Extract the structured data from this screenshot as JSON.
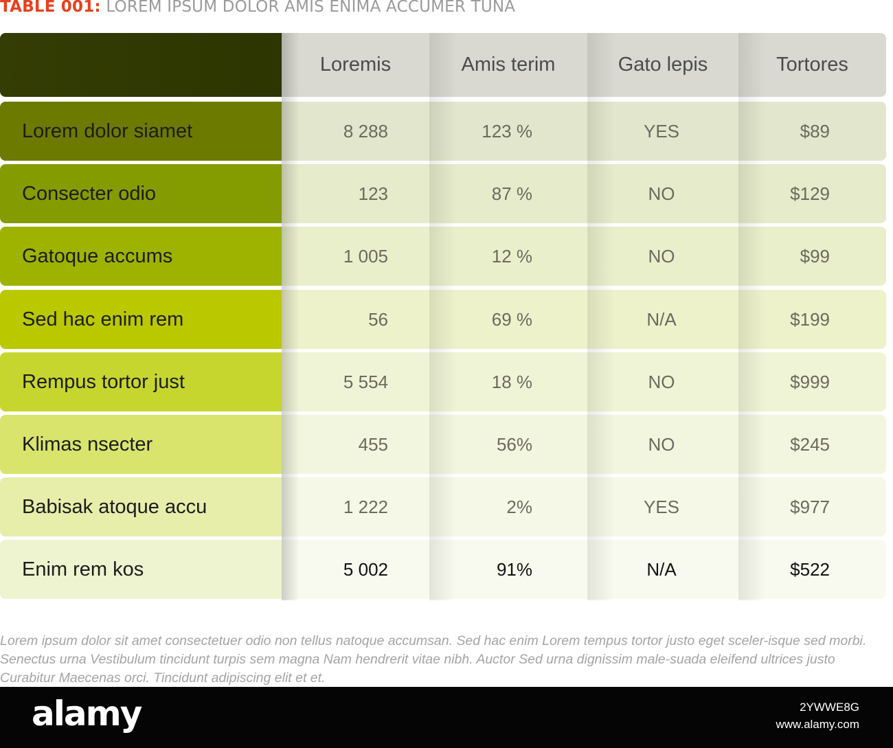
{
  "title": {
    "code": "TABLE 001:",
    "text": "LOREM IPSUM DOLOR AMIS ENIMA ACCUMER TUNA"
  },
  "table": {
    "corner_label": "",
    "columns": [
      "Loremis",
      "Amis terim",
      "Gato lepis",
      "Tortores"
    ],
    "rows": [
      {
        "label": "Lorem dolor siamet",
        "values": [
          "8 288",
          "123 %",
          "YES",
          "$89"
        ],
        "label_color": "#6c7b00",
        "data_color": "#e2e6cc"
      },
      {
        "label": "Consecter odio",
        "values": [
          "123",
          "87 %",
          "NO",
          "$129"
        ],
        "label_color": "#859c00",
        "data_color": "#e6ebcb"
      },
      {
        "label": "Gatoque accums",
        "values": [
          "1 005",
          "12 %",
          "NO",
          "$99"
        ],
        "label_color": "#9db300",
        "data_color": "#eaefcb"
      },
      {
        "label": "Sed hac enim rem",
        "values": [
          "56",
          "69 %",
          "N/A",
          "$199"
        ],
        "label_color": "#bac800",
        "data_color": "#eef2cb"
      },
      {
        "label": "Rempus tortor just",
        "values": [
          "5 554",
          "18 %",
          "NO",
          "$999"
        ],
        "label_color": "#c7d62f",
        "data_color": "#f0f4d6"
      },
      {
        "label": "Klimas nsecter",
        "values": [
          "455",
          "56%",
          "NO",
          "$245"
        ],
        "label_color": "#d8e46c",
        "data_color": "#f3f6de"
      },
      {
        "label": "Babisak atoque accu",
        "values": [
          "1 222",
          "2%",
          "YES",
          "$977"
        ],
        "label_color": "#e6eeaa",
        "data_color": "#f6f8e7"
      },
      {
        "label": "Enim rem kos",
        "values": [
          "5 002",
          "91%",
          "N/A",
          "$522"
        ],
        "label_color": "#eef4cf",
        "data_color": "#f9faef"
      }
    ]
  },
  "footnote": "Lorem ipsum dolor sit amet consectetuer odio non tellus natoque accumsan. Sed hac enim Lorem tempus tortor justo eget sceler-isque sed morbi. Senectus urna Vestibulum tincidunt turpis sem magna Nam hendrerit vitae nibh. Auctor Sed urna dignissim male-suada eleifend ultrices justo Curabitur Maecenas orci. Tincidunt adipiscing elit et et.",
  "banner": {
    "logo": "alamy",
    "image_id": "2YWWE8G",
    "site": "www.alamy.com"
  }
}
